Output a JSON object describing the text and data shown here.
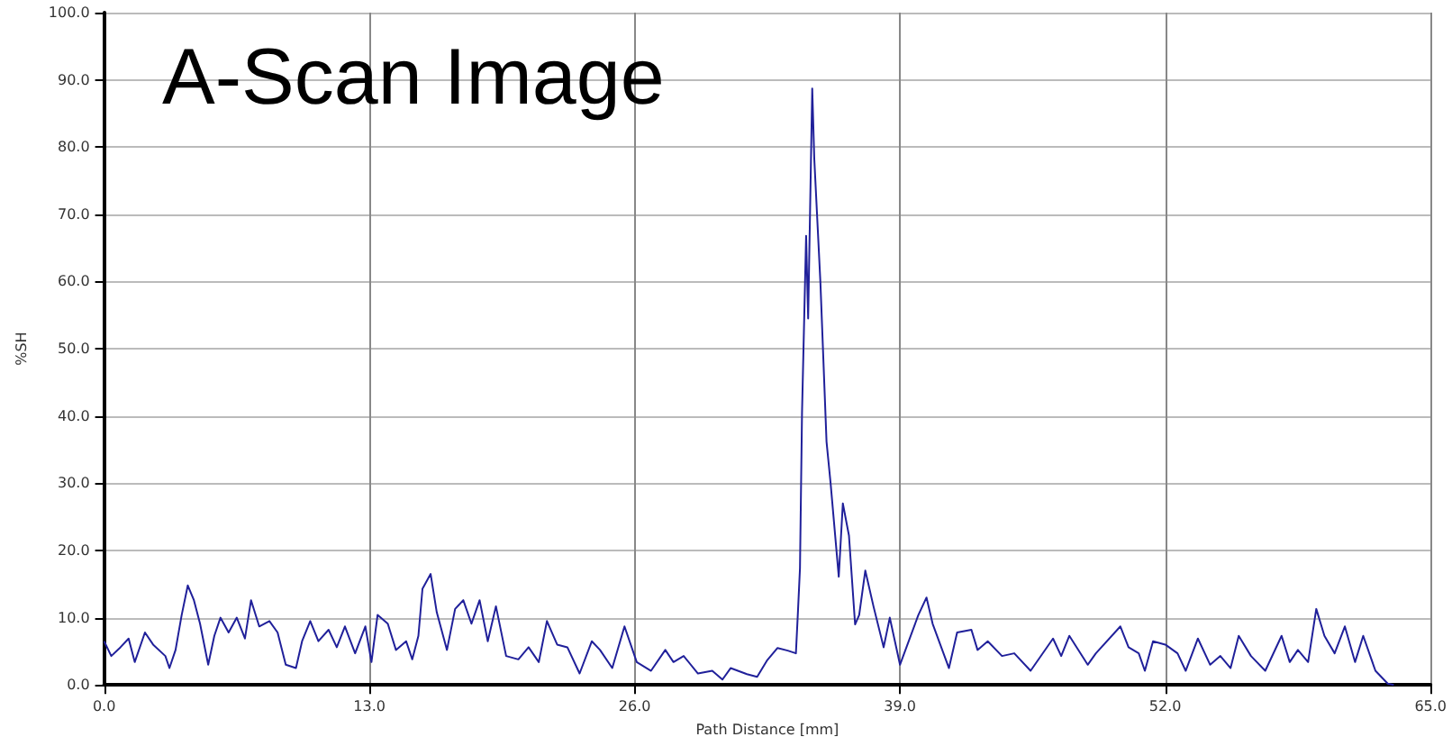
{
  "chart_data": {
    "type": "line",
    "title": "A-Scan Image",
    "xlabel": "Path Distance [mm]",
    "ylabel": "%SH",
    "xlim": [
      0,
      65
    ],
    "xticks": [
      {
        "value": 0,
        "label": "0.0"
      },
      {
        "value": 13,
        "label": "13.0"
      },
      {
        "value": 26,
        "label": "26.0"
      },
      {
        "value": 39,
        "label": "39.0"
      },
      {
        "value": 52,
        "label": "52.0"
      },
      {
        "value": 65,
        "label": "65.0"
      }
    ],
    "ylim": [
      0,
      100
    ],
    "yticks": [
      {
        "value": 0,
        "label": "0.0"
      },
      {
        "value": 10,
        "label": "10.0"
      },
      {
        "value": 20,
        "label": "20.0"
      },
      {
        "value": 30,
        "label": "30.0"
      },
      {
        "value": 40,
        "label": "40.0"
      },
      {
        "value": 50,
        "label": "50.0"
      },
      {
        "value": 60,
        "label": "60.0"
      },
      {
        "value": 70,
        "label": "70.0"
      },
      {
        "value": 80,
        "label": "80.0"
      },
      {
        "value": 90,
        "label": "90.0"
      },
      {
        "value": 100,
        "label": "100.0"
      }
    ],
    "grid": true,
    "marker": "none",
    "line_style": "solid",
    "series": [
      {
        "color": "#20209a",
        "x": [
          0,
          0.35,
          0.8,
          1.2,
          1.5,
          2.0,
          2.4,
          3.0,
          3.2,
          3.5,
          3.8,
          4.1,
          4.4,
          4.7,
          5.1,
          5.4,
          5.7,
          6.1,
          6.5,
          6.9,
          7.2,
          7.6,
          8.1,
          8.5,
          8.9,
          9.4,
          9.7,
          10.1,
          10.5,
          11.0,
          11.4,
          11.8,
          12.3,
          12.8,
          13.1,
          13.4,
          13.9,
          14.3,
          14.8,
          15.1,
          15.4,
          15.6,
          16.0,
          16.3,
          16.8,
          17.2,
          17.6,
          18.0,
          18.4,
          18.8,
          19.2,
          19.7,
          20.3,
          20.8,
          21.3,
          21.7,
          22.2,
          22.7,
          23.3,
          23.9,
          24.3,
          24.9,
          25.5,
          26.1,
          26.8,
          27.5,
          27.9,
          28.4,
          29.1,
          29.8,
          30.3,
          30.7,
          31.5,
          32.0,
          32.5,
          33.0,
          33.5,
          33.9,
          34.0,
          34.1,
          34.2,
          34.4,
          34.5,
          34.7,
          34.8,
          35.1,
          35.4,
          35.6,
          36.0,
          36.2,
          36.5,
          36.8,
          37.0,
          37.3,
          37.7,
          38.2,
          38.5,
          39.0,
          39.9,
          40.3,
          40.6,
          41.4,
          41.8,
          42.5,
          42.8,
          43.3,
          44.0,
          44.6,
          45.4,
          46.5,
          46.9,
          47.3,
          48.2,
          48.6,
          49.8,
          50.2,
          50.7,
          51.0,
          51.4,
          52.0,
          52.6,
          53.0,
          53.6,
          54.2,
          54.7,
          55.2,
          55.6,
          56.2,
          56.9,
          57.7,
          58.1,
          58.5,
          59.0,
          59.4,
          59.8,
          60.3,
          60.8,
          61.3,
          61.7,
          62.3,
          62.9,
          63.2
        ],
        "values": [
          6.5,
          4.3,
          5.6,
          6.9,
          3.4,
          7.8,
          6.0,
          4.3,
          2.5,
          5.2,
          10.4,
          14.8,
          12.6,
          9.1,
          3.0,
          7.3,
          10.0,
          7.8,
          10.0,
          6.9,
          12.6,
          8.7,
          9.5,
          7.8,
          3.0,
          2.5,
          6.5,
          9.5,
          6.5,
          8.2,
          5.6,
          8.7,
          4.7,
          8.7,
          3.4,
          10.4,
          9.1,
          5.2,
          6.5,
          3.8,
          7.3,
          14.3,
          16.5,
          10.8,
          5.2,
          11.3,
          12.6,
          9.1,
          12.6,
          6.5,
          11.7,
          4.3,
          3.8,
          5.6,
          3.4,
          9.5,
          6.0,
          5.6,
          1.7,
          6.5,
          5.2,
          2.5,
          8.7,
          3.4,
          2.1,
          5.2,
          3.4,
          4.3,
          1.7,
          2.1,
          0.8,
          2.5,
          1.6,
          1.2,
          3.7,
          5.5,
          5.1,
          4.7,
          10.9,
          17.4,
          40.6,
          66.8,
          54.5,
          88.7,
          78.3,
          59.9,
          36.2,
          30.0,
          16.1,
          27.0,
          22.2,
          9.0,
          10.4,
          17.0,
          11.7,
          5.6,
          10.0,
          3.0,
          10.4,
          13.0,
          9.1,
          2.5,
          7.8,
          8.2,
          5.2,
          6.5,
          4.3,
          4.7,
          2.1,
          6.9,
          4.3,
          7.3,
          3.0,
          4.7,
          8.7,
          5.6,
          4.7,
          2.1,
          6.5,
          6.0,
          4.7,
          2.1,
          6.9,
          3.0,
          4.3,
          2.5,
          7.3,
          4.3,
          2.1,
          7.3,
          3.4,
          5.2,
          3.4,
          11.3,
          7.3,
          4.7,
          8.7,
          3.4,
          7.3,
          2.1,
          0.2,
          0
        ]
      }
    ]
  }
}
